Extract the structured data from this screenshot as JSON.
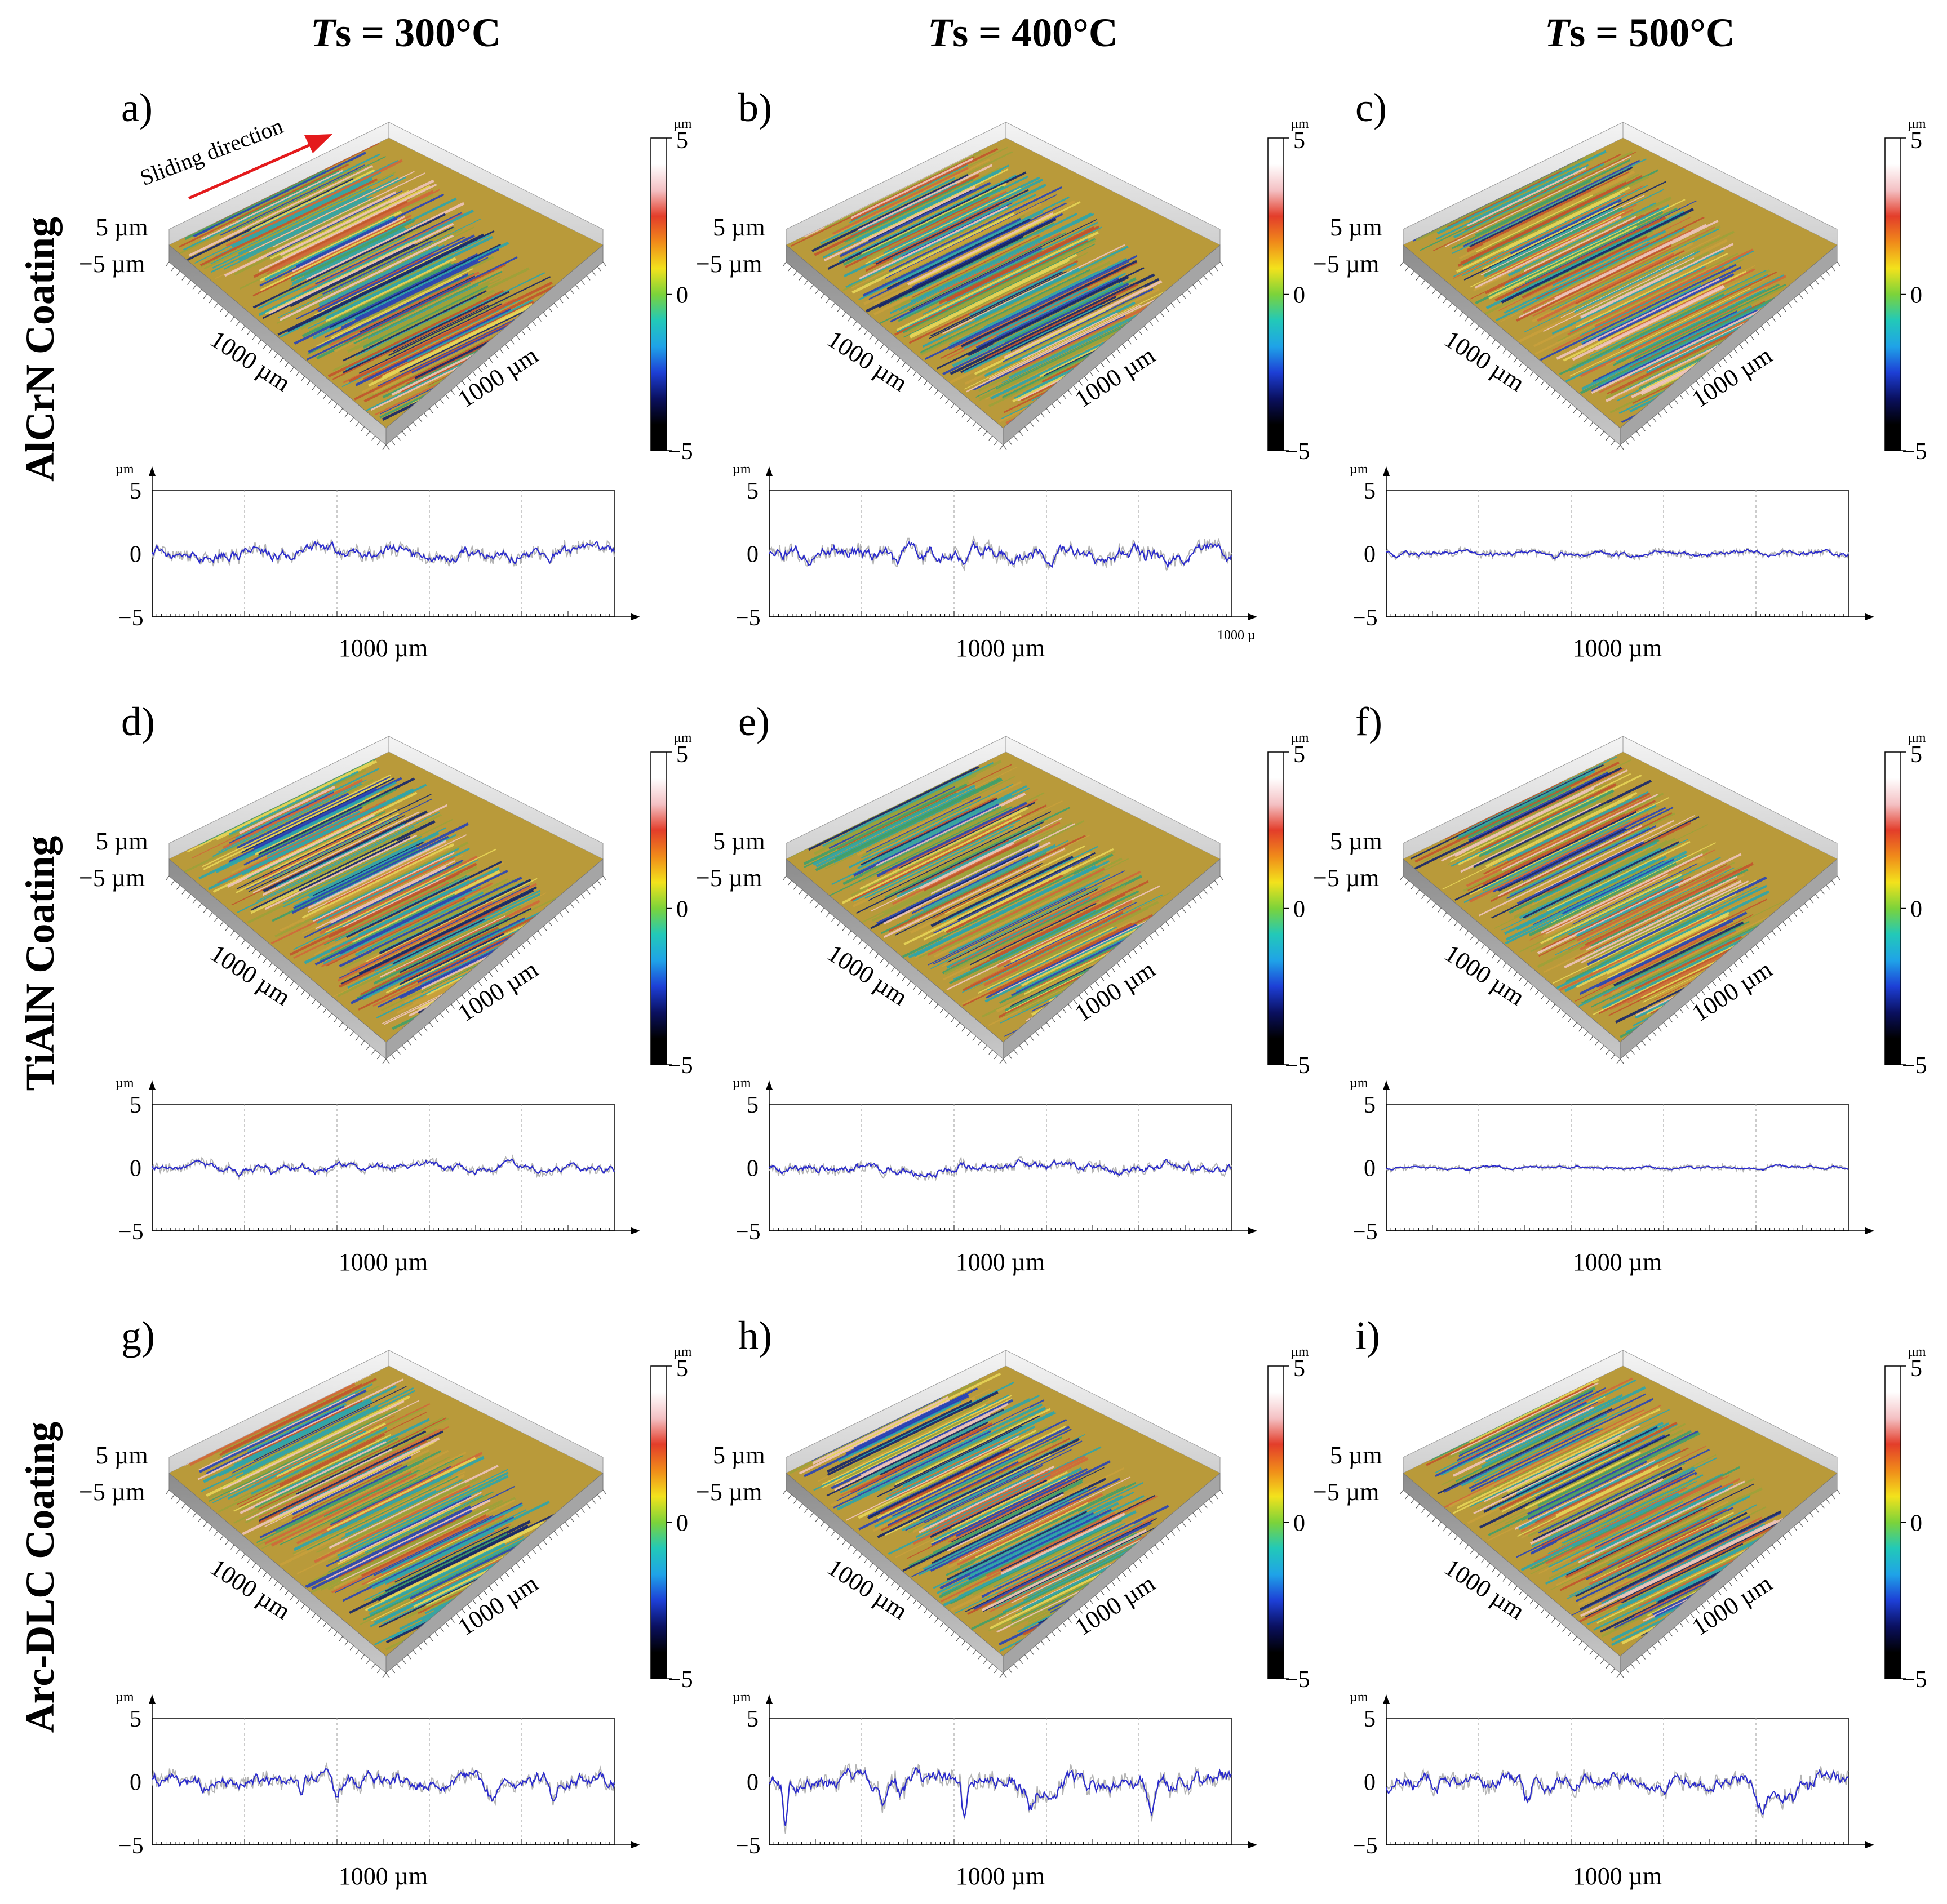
{
  "column_headers": [
    "Ts = 300°C",
    "Ts = 400°C",
    "Ts = 500°C"
  ],
  "column_header_parts": [
    {
      "italic": "T",
      "rest": "s = 300°C"
    },
    {
      "italic": "T",
      "rest": "s = 400°C"
    },
    {
      "italic": "T",
      "rest": "s = 500°C"
    }
  ],
  "row_labels": [
    "AlCrN Coating",
    "TiAlN Coating",
    "Arc-DLC Coating"
  ],
  "annotation": {
    "sliding_direction": "Sliding direction",
    "arrow_color": "#e41a1c"
  },
  "colors": {
    "profile_line": "#2b2bcc",
    "profile_raw": "#b4b4b4",
    "colorbar": [
      "#000000",
      "#000000",
      "#0a1060",
      "#1d3fd6",
      "#1fa3e8",
      "#22c9b8",
      "#7cd33a",
      "#f3e21c",
      "#f08a1a",
      "#e33d2a",
      "#f4c1c4",
      "#ffffff",
      "#ffffff"
    ],
    "surface_base": [
      "#c9a03c",
      "#9aa33a",
      "#d2663a",
      "#3aa06e",
      "#24a6b3",
      "#d9b07a"
    ]
  },
  "units": {
    "um": "µm"
  },
  "surface_axis_labels": {
    "z_top": "5 µm",
    "z_bottom": "−5 µm",
    "x": "1000 µm",
    "y": "1000 µm"
  },
  "colorbar_ticks": [
    "5",
    "0",
    "−5"
  ],
  "profile_axis": {
    "y_ticks": [
      "5",
      "0",
      "−5"
    ],
    "x_label": "1000 µm",
    "ylim": [
      -5,
      5
    ]
  },
  "panels": [
    {
      "id": "a",
      "label": "a)",
      "coating": "AlCrN Coating",
      "temperature": "300°C",
      "stripe_intensity": 0.9,
      "profile_amplitude": 0.45,
      "dip_depth": 0.6
    },
    {
      "id": "b",
      "label": "b)",
      "coating": "AlCrN Coating",
      "temperature": "400°C",
      "stripe_intensity": 0.85,
      "profile_amplitude": 0.55,
      "dip_depth": 0.8,
      "extra_x_label": "1000 µ"
    },
    {
      "id": "c",
      "label": "c)",
      "coating": "AlCrN Coating",
      "temperature": "500°C",
      "stripe_intensity": 0.4,
      "profile_amplitude": 0.2,
      "dip_depth": 0.3
    },
    {
      "id": "d",
      "label": "d)",
      "coating": "TiAlN Coating",
      "temperature": "300°C",
      "stripe_intensity": 0.85,
      "profile_amplitude": 0.3,
      "dip_depth": 0.5
    },
    {
      "id": "e",
      "label": "e)",
      "coating": "TiAlN Coating",
      "temperature": "400°C",
      "stripe_intensity": 0.7,
      "profile_amplitude": 0.35,
      "dip_depth": 0.4
    },
    {
      "id": "f",
      "label": "f)",
      "coating": "TiAlN Coating",
      "temperature": "500°C",
      "stripe_intensity": 0.45,
      "profile_amplitude": 0.1,
      "dip_depth": 0.15
    },
    {
      "id": "g",
      "label": "g)",
      "coating": "Arc-DLC Coating",
      "temperature": "300°C",
      "stripe_intensity": 0.6,
      "profile_amplitude": 0.55,
      "dip_depth": 1.3
    },
    {
      "id": "h",
      "label": "h)",
      "coating": "Arc-DLC Coating",
      "temperature": "400°C",
      "stripe_intensity": 0.8,
      "profile_amplitude": 0.7,
      "dip_depth": 3.5
    },
    {
      "id": "i",
      "label": "i)",
      "coating": "Arc-DLC Coating",
      "temperature": "500°C",
      "stripe_intensity": 0.8,
      "profile_amplitude": 0.6,
      "dip_depth": 2.0
    }
  ]
}
